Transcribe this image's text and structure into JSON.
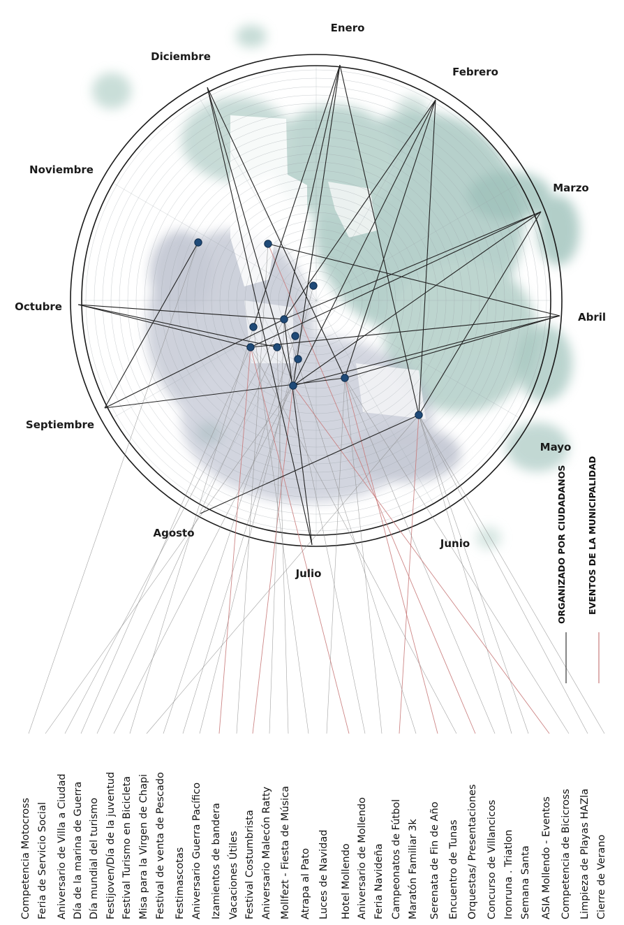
{
  "months": [
    "Enero",
    "Febrero",
    "Marzo",
    "Abril",
    "Mayo",
    "Junio",
    "Julio",
    "Agosto",
    "Septiembre",
    "Octubre",
    "Noviembre",
    "Diciembre"
  ],
  "events": [
    "Competencia Motocross",
    "Feria de Servicio Social",
    "Aniversario de Villa a Ciudad",
    "Día de la marina de Guerra",
    "Día mundial del turismo",
    "Festijoven/Día de la juventud",
    "Festival Turismo en Bicicleta",
    "Misa para la Virgen de Chapi",
    "Festival de venta de Pescado",
    "Festimascotas",
    "Aniversario Guerra Pacífico",
    "Izamientos de bandera",
    "Vacaciones Útiles",
    "Festival Costumbrista",
    "Aniversario Malecón Ratty",
    "Mollfezt - Fiesta de Música",
    "Atrapa al Pato",
    "Luces de Navidad",
    "Hotel Mollendo",
    "Aniversario de Mollendo",
    "Feria Navideña",
    "Campeonatos de Fútbol",
    "Maratón Familiar 3k",
    "Serenata de Fin de Año",
    "Encuentro de Tunas",
    "Orquestas/ Presentaciones",
    "Concurso de Villancicos",
    "Ironruna . Triatlon",
    "Semana Santa",
    "ASIA Mollendo - Eventos",
    "Competencia de Bicicross",
    "Limpieza de Playas HAZla",
    "Cierre de Verano"
  ],
  "legend": {
    "citizens": "ORGANIZADO POR CIUDADANOS",
    "municipality": "EVENTOS DE LA MUNICIPALIDAD"
  },
  "colors": {
    "citizens": "#333333",
    "municipality": "#c87a7a",
    "marker": "#1f4a78",
    "ring": "#1a1a1a"
  }
}
